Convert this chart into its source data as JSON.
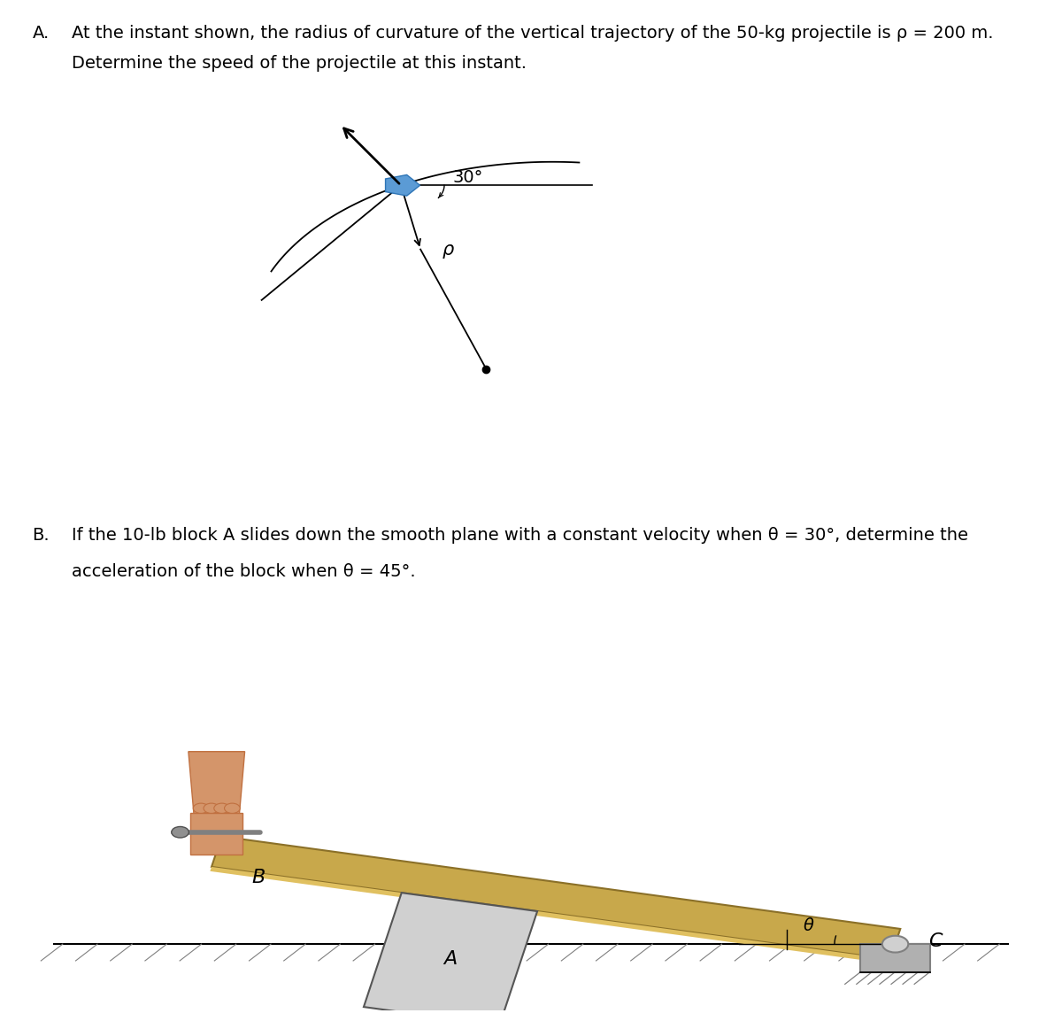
{
  "title_A_prefix": "A.",
  "title_A_text": "  At the instant shown, the radius of curvature of the vertical trajectory of the 50-kg projectile is ρ = 200 m.",
  "subtitle_A": "    Determine the speed of the projectile at this instant.",
  "title_B_prefix": "B.",
  "title_B_text": "  If the 10-lb block A slides down the smooth plane with a constant velocity when θ = 30°, determine the",
  "subtitle_B": "    acceleration of the block when θ = 45°.",
  "bg_color": "#ffffff",
  "text_color": "#000000",
  "angle_label": "30°",
  "rho_label": "ρ",
  "label_A": "A",
  "label_B": "B",
  "label_C": "C",
  "theta_label": "θ",
  "proj_color": "#5b9bd5",
  "proj_edge_color": "#2e75b6",
  "plank_color": "#c8a84b",
  "plank_edge_color": "#8b7028",
  "block_color": "#d0d0d0",
  "block_edge_color": "#555555",
  "skin_color": "#d4956a",
  "skin_dark": "#c07040"
}
